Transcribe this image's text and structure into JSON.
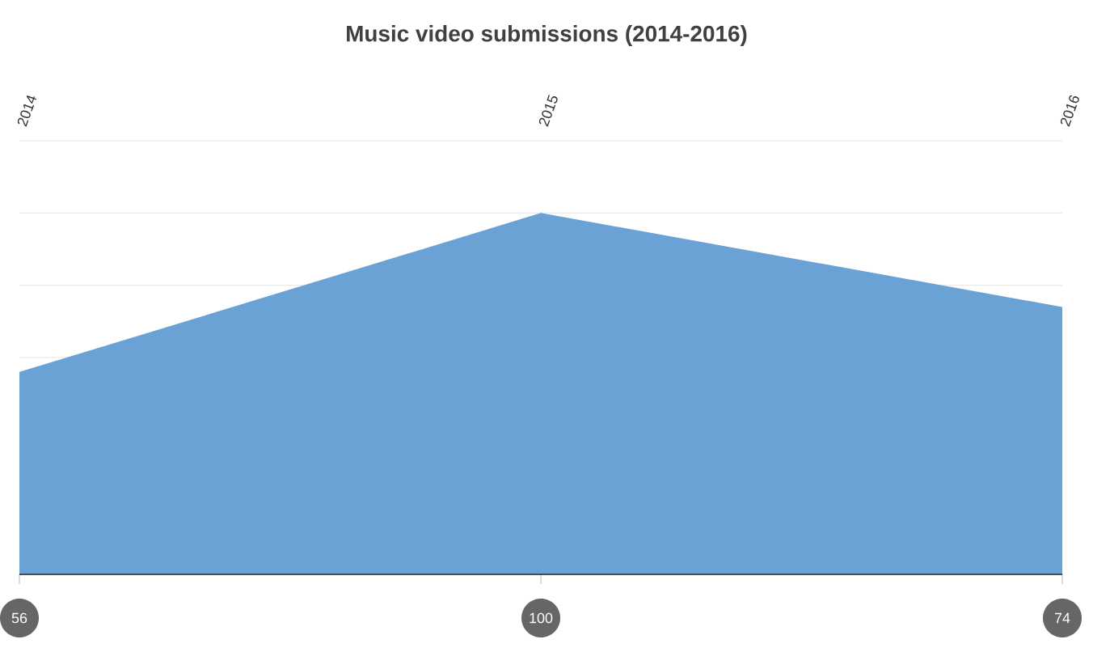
{
  "chart_data": {
    "type": "area",
    "title": "Music video submissions (2014-2016)",
    "categories": [
      "2014",
      "2015",
      "2016"
    ],
    "values": [
      56,
      100,
      74
    ],
    "color": "#6aa2d6",
    "data_labels": true,
    "grid": "y",
    "tick_labels": "x"
  }
}
